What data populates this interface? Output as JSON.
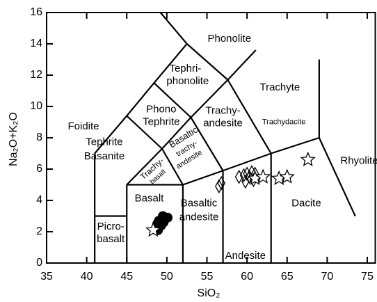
{
  "chart_data": {
    "type": "scatter",
    "xlabel": "SiO₂",
    "ylabel": "Na₂O+K₂O",
    "xlim": [
      35,
      76
    ],
    "ylim": [
      0,
      16
    ],
    "xticks": [
      35,
      40,
      45,
      50,
      55,
      60,
      65,
      70,
      75
    ],
    "yticks": [
      0,
      2,
      4,
      6,
      8,
      10,
      12,
      14,
      16
    ],
    "boundaries": [
      {
        "x": [
          41,
          41
        ],
        "y": [
          0,
          7
        ]
      },
      {
        "x": [
          41,
          45
        ],
        "y": [
          3,
          3
        ]
      },
      {
        "x": [
          45,
          45
        ],
        "y": [
          0,
          5
        ]
      },
      {
        "x": [
          45,
          52,
          57,
          63,
          69
        ],
        "y": [
          5,
          5,
          5.9,
          7,
          8
        ]
      },
      {
        "x": [
          52,
          52
        ],
        "y": [
          0,
          5
        ]
      },
      {
        "x": [
          57,
          57
        ],
        "y": [
          0,
          5.9
        ]
      },
      {
        "x": [
          63,
          63
        ],
        "y": [
          0,
          7
        ]
      },
      {
        "x": [
          45,
          49.4,
          53,
          57.6,
          61.1
        ],
        "y": [
          5,
          7.3,
          9.3,
          11.7,
          13.6
        ]
      },
      {
        "x": [
          49.4,
          52
        ],
        "y": [
          7.3,
          5
        ]
      },
      {
        "x": [
          53,
          57
        ],
        "y": [
          9.3,
          5.9
        ]
      },
      {
        "x": [
          57.6,
          63
        ],
        "y": [
          11.7,
          7
        ]
      },
      {
        "x": [
          41,
          45,
          48.4,
          52.5
        ],
        "y": [
          7,
          9.4,
          11.5,
          14
        ]
      },
      {
        "x": [
          45,
          49.4
        ],
        "y": [
          9.4,
          7.3
        ]
      },
      {
        "x": [
          48.4,
          53
        ],
        "y": [
          11.5,
          9.3
        ]
      },
      {
        "x": [
          52.5,
          57.6
        ],
        "y": [
          14,
          11.7
        ]
      },
      {
        "x": [
          52.5,
          49.2
        ],
        "y": [
          14,
          16
        ]
      },
      {
        "x": [
          69,
          69
        ],
        "y": [
          8,
          13
        ]
      },
      {
        "x": [
          69,
          73.5
        ],
        "y": [
          8,
          3
        ]
      }
    ],
    "annotations": [
      "Phonolite",
      "Tephri-",
      "phonolite",
      "Trachyte",
      "Phono",
      "Tephrite",
      "Foidite",
      "Trachy-",
      "andesite",
      "Trachydacite",
      "Tephrite",
      "Basanite",
      "Basaltic",
      "trachy-",
      "andesite",
      "Trachy-",
      "basalt",
      "Basalt",
      "Basaltic",
      "andesite",
      "Picro-",
      "basalt",
      "Andesite",
      "Dacite",
      "Rhyolite"
    ],
    "series": [
      {
        "marker": "circle",
        "color": "#000000",
        "x": [
          49.5,
          49.8,
          49.0,
          48.8,
          49.3,
          48.7,
          49.6,
          50.1,
          48.9
        ],
        "y": [
          3.0,
          2.9,
          2.7,
          2.5,
          2.4,
          2.3,
          2.6,
          2.9,
          2.1
        ]
      },
      {
        "marker": "diamond",
        "color": "#000000",
        "x": [
          56.5,
          56.8,
          59,
          59.6,
          60,
          60.3,
          60.6,
          61,
          60.8,
          59.8
        ],
        "y": [
          4.9,
          5.1,
          5.5,
          5.6,
          5.7,
          5.5,
          5.8,
          5.7,
          5.3,
          5.2
        ]
      },
      {
        "marker": "star",
        "color": "#000000",
        "x": [
          48.3,
          61,
          62,
          64,
          65,
          67.6
        ],
        "y": [
          2.1,
          5.4,
          5.5,
          5.4,
          5.5,
          6.6
        ]
      }
    ]
  }
}
